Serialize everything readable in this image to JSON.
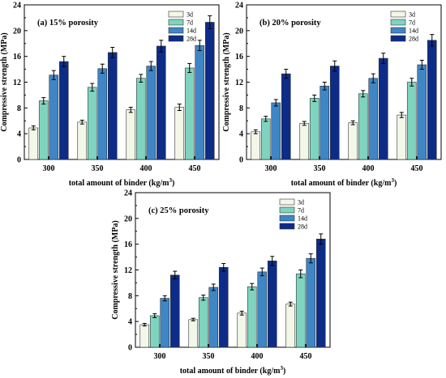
{
  "chart_data": [
    {
      "type": "bar",
      "title": "(a) 15%  porosity",
      "xlabel": "total amount of binder (kg/m",
      "xlabel_sup": "3",
      "xlabel_tail": ")",
      "ylabel": "Compressive strength (MPa)",
      "ylim": [
        0,
        24
      ],
      "yticks": [
        "0",
        "4",
        "8",
        "12",
        "16",
        "20",
        "24"
      ],
      "categories": [
        "300",
        "350",
        "400",
        "450"
      ],
      "series": [
        {
          "name": "3d",
          "color": "#f2f7e8",
          "values": [
            4.9,
            5.8,
            7.7,
            8.1
          ],
          "errors": [
            0.3,
            0.3,
            0.4,
            0.5
          ]
        },
        {
          "name": "7d",
          "color": "#7fd4bf",
          "values": [
            9.1,
            11.2,
            12.6,
            14.2
          ],
          "errors": [
            0.5,
            0.6,
            0.6,
            0.7
          ]
        },
        {
          "name": "14d",
          "color": "#3f86c6",
          "values": [
            13.1,
            14.1,
            14.5,
            17.7
          ],
          "errors": [
            0.7,
            0.7,
            0.7,
            0.8
          ]
        },
        {
          "name": "28d",
          "color": "#0d2c88",
          "values": [
            15.2,
            16.6,
            17.6,
            21.3
          ],
          "errors": [
            0.8,
            0.8,
            0.9,
            1.0
          ]
        }
      ],
      "legend": "top-right",
      "grid": false
    },
    {
      "type": "bar",
      "title": "(b) 20% porosity",
      "xlabel": "total amount of binder (kg/m",
      "xlabel_sup": "3",
      "xlabel_tail": ")",
      "ylabel": "Compressive strength (MPa)",
      "ylim": [
        0,
        24
      ],
      "yticks": [
        "0",
        "4",
        "8",
        "12",
        "16",
        "20",
        "24"
      ],
      "categories": [
        "300",
        "350",
        "400",
        "450"
      ],
      "series": [
        {
          "name": "3d",
          "color": "#f2f7e8",
          "values": [
            4.3,
            5.6,
            5.7,
            6.9
          ],
          "errors": [
            0.3,
            0.3,
            0.3,
            0.4
          ]
        },
        {
          "name": "7d",
          "color": "#7fd4bf",
          "values": [
            6.3,
            9.5,
            10.2,
            12.0
          ],
          "errors": [
            0.4,
            0.5,
            0.5,
            0.6
          ]
        },
        {
          "name": "14d",
          "color": "#3f86c6",
          "values": [
            8.8,
            11.4,
            12.6,
            14.7
          ],
          "errors": [
            0.5,
            0.6,
            0.7,
            0.7
          ]
        },
        {
          "name": "28d",
          "color": "#0d2c88",
          "values": [
            13.3,
            14.5,
            15.7,
            18.5
          ],
          "errors": [
            0.7,
            0.8,
            0.8,
            0.9
          ]
        }
      ],
      "legend": "top-right",
      "grid": false
    },
    {
      "type": "bar",
      "title": "(c) 25% porosity",
      "xlabel": "total amount of binder (kg/m",
      "xlabel_sup": "3",
      "xlabel_tail": ")",
      "ylabel": "Compressive strength (MPa)",
      "ylim": [
        0,
        24
      ],
      "yticks": [
        "0",
        "4",
        "8",
        "12",
        "16",
        "20",
        "24"
      ],
      "categories": [
        "300",
        "350",
        "400",
        "450"
      ],
      "series": [
        {
          "name": "3d",
          "color": "#f2f7e8",
          "values": [
            3.5,
            4.3,
            5.3,
            6.7
          ],
          "errors": [
            0.2,
            0.2,
            0.3,
            0.3
          ]
        },
        {
          "name": "7d",
          "color": "#7fd4bf",
          "values": [
            4.9,
            7.7,
            9.4,
            11.4
          ],
          "errors": [
            0.3,
            0.4,
            0.5,
            0.6
          ]
        },
        {
          "name": "14d",
          "color": "#3f86c6",
          "values": [
            7.6,
            9.3,
            11.7,
            13.8
          ],
          "errors": [
            0.4,
            0.5,
            0.6,
            0.7
          ]
        },
        {
          "name": "28d",
          "color": "#0d2c88",
          "values": [
            11.2,
            12.4,
            13.4,
            16.8
          ],
          "errors": [
            0.6,
            0.6,
            0.7,
            0.8
          ]
        }
      ],
      "legend": "top-right",
      "grid": false
    }
  ]
}
